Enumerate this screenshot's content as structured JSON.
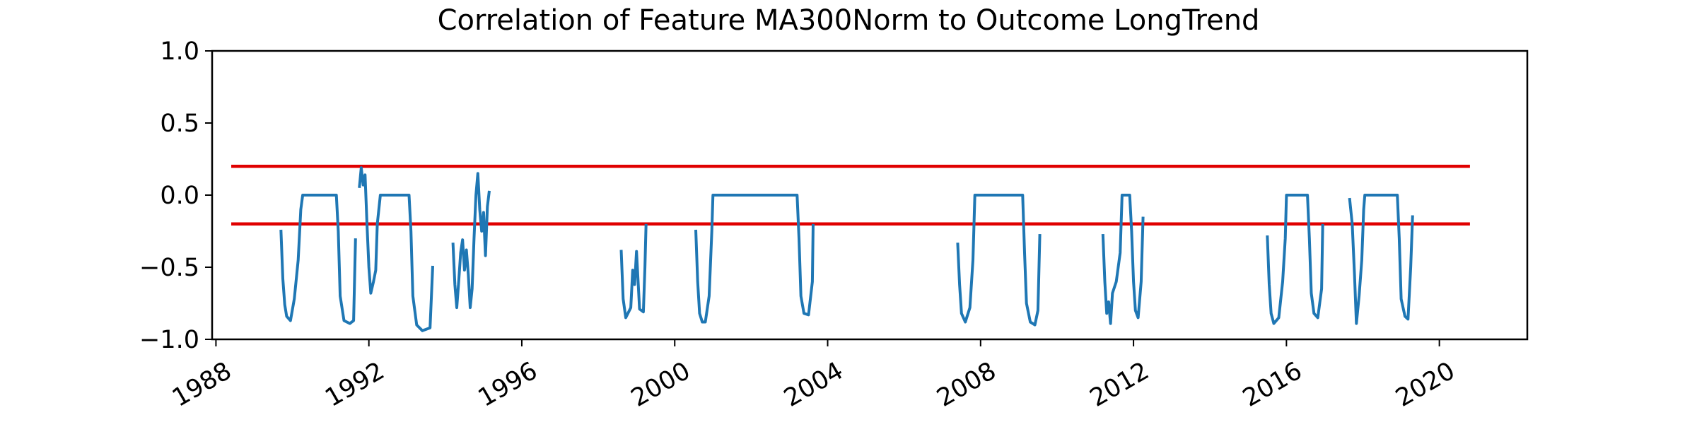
{
  "chart_data": {
    "type": "line",
    "title": "Correlation of Feature MA300Norm to Outcome LongTrend",
    "xlabel": "",
    "ylabel": "",
    "x_axis": "date (year)",
    "xlim": [
      1987.9,
      2022.3
    ],
    "ylim": [
      -1.0,
      1.0
    ],
    "xticks": [
      1988,
      1992,
      1996,
      2000,
      2004,
      2008,
      2012,
      2016,
      2020
    ],
    "xtick_labels": [
      "1988",
      "1992",
      "1996",
      "2000",
      "2004",
      "2008",
      "2012",
      "2016",
      "2020"
    ],
    "yticks": [
      1.0,
      0.5,
      0.0,
      -0.5,
      -1.0
    ],
    "ytick_labels": [
      "1.0",
      "0.5",
      "0.0",
      "−0.5",
      "−1.0"
    ],
    "grid": false,
    "legend": "none",
    "colors": {
      "correlation": "#1f77b4",
      "threshold": "#e00000"
    },
    "thresholds": [
      {
        "y": 0.2,
        "x": [
          1988.4,
          2020.8
        ]
      },
      {
        "y": -0.2,
        "x": [
          1988.4,
          2020.8
        ]
      }
    ],
    "series": [
      {
        "segments": [
          [
            [
              1989.7,
              -0.24
            ],
            [
              1989.75,
              -0.58
            ],
            [
              1989.8,
              -0.76
            ],
            [
              1989.85,
              -0.84
            ],
            [
              1989.95,
              -0.87
            ],
            [
              1990.05,
              -0.72
            ],
            [
              1990.15,
              -0.45
            ],
            [
              1990.22,
              -0.1
            ],
            [
              1990.27,
              0.0
            ],
            [
              1991.15,
              0.0
            ],
            [
              1991.2,
              -0.25
            ],
            [
              1991.25,
              -0.7
            ],
            [
              1991.35,
              -0.87
            ],
            [
              1991.5,
              -0.89
            ],
            [
              1991.6,
              -0.87
            ],
            [
              1991.65,
              -0.3
            ]
          ],
          [
            [
              1991.75,
              0.05
            ],
            [
              1991.8,
              0.19
            ],
            [
              1991.85,
              0.07
            ],
            [
              1991.9,
              0.14
            ],
            [
              1991.95,
              -0.2
            ],
            [
              1992.0,
              -0.5
            ],
            [
              1992.05,
              -0.68
            ],
            [
              1992.12,
              -0.6
            ],
            [
              1992.18,
              -0.52
            ],
            [
              1992.22,
              -0.2
            ],
            [
              1992.3,
              0.0
            ],
            [
              1993.05,
              0.0
            ],
            [
              1993.1,
              -0.25
            ],
            [
              1993.15,
              -0.7
            ],
            [
              1993.25,
              -0.9
            ],
            [
              1993.4,
              -0.94
            ],
            [
              1993.6,
              -0.92
            ],
            [
              1993.67,
              -0.49
            ]
          ],
          [
            [
              1994.2,
              -0.33
            ],
            [
              1994.25,
              -0.62
            ],
            [
              1994.3,
              -0.78
            ],
            [
              1994.35,
              -0.6
            ],
            [
              1994.4,
              -0.4
            ],
            [
              1994.45,
              -0.31
            ],
            [
              1994.5,
              -0.52
            ],
            [
              1994.55,
              -0.38
            ],
            [
              1994.6,
              -0.55
            ],
            [
              1994.65,
              -0.78
            ],
            [
              1994.7,
              -0.65
            ],
            [
              1994.75,
              -0.3
            ],
            [
              1994.8,
              0.0
            ],
            [
              1994.85,
              0.15
            ],
            [
              1994.9,
              -0.1
            ],
            [
              1994.95,
              -0.25
            ],
            [
              1995.0,
              -0.12
            ],
            [
              1995.05,
              -0.42
            ],
            [
              1995.1,
              -0.08
            ],
            [
              1995.15,
              0.03
            ]
          ],
          [
            [
              1998.6,
              -0.38
            ],
            [
              1998.65,
              -0.72
            ],
            [
              1998.72,
              -0.85
            ],
            [
              1998.85,
              -0.78
            ],
            [
              1998.9,
              -0.52
            ],
            [
              1998.95,
              -0.62
            ],
            [
              1999.0,
              -0.39
            ],
            [
              1999.08,
              -0.79
            ],
            [
              1999.18,
              -0.81
            ],
            [
              1999.22,
              -0.5
            ],
            [
              1999.25,
              -0.2
            ]
          ],
          [
            [
              2000.55,
              -0.24
            ],
            [
              2000.6,
              -0.6
            ],
            [
              2000.65,
              -0.82
            ],
            [
              2000.72,
              -0.88
            ],
            [
              2000.8,
              -0.88
            ],
            [
              2000.9,
              -0.7
            ],
            [
              2000.97,
              -0.25
            ],
            [
              2001.0,
              0.0
            ],
            [
              2003.2,
              0.0
            ],
            [
              2003.25,
              -0.3
            ],
            [
              2003.3,
              -0.7
            ],
            [
              2003.38,
              -0.82
            ],
            [
              2003.5,
              -0.83
            ],
            [
              2003.6,
              -0.6
            ],
            [
              2003.62,
              -0.2
            ]
          ],
          [
            [
              2007.4,
              -0.33
            ],
            [
              2007.45,
              -0.62
            ],
            [
              2007.5,
              -0.82
            ],
            [
              2007.6,
              -0.88
            ],
            [
              2007.72,
              -0.78
            ],
            [
              2007.8,
              -0.45
            ],
            [
              2007.85,
              0.0
            ],
            [
              2009.1,
              0.0
            ],
            [
              2009.15,
              -0.4
            ],
            [
              2009.2,
              -0.75
            ],
            [
              2009.3,
              -0.88
            ],
            [
              2009.42,
              -0.9
            ],
            [
              2009.5,
              -0.8
            ],
            [
              2009.55,
              -0.27
            ]
          ],
          [
            [
              2011.2,
              -0.27
            ],
            [
              2011.25,
              -0.6
            ],
            [
              2011.3,
              -0.82
            ],
            [
              2011.35,
              -0.74
            ],
            [
              2011.4,
              -0.89
            ],
            [
              2011.45,
              -0.68
            ],
            [
              2011.55,
              -0.6
            ],
            [
              2011.65,
              -0.4
            ],
            [
              2011.7,
              0.0
            ],
            [
              2011.9,
              0.0
            ],
            [
              2011.95,
              -0.25
            ],
            [
              2012.0,
              -0.6
            ],
            [
              2012.05,
              -0.8
            ],
            [
              2012.12,
              -0.85
            ],
            [
              2012.2,
              -0.6
            ],
            [
              2012.25,
              -0.15
            ]
          ],
          [
            [
              2015.5,
              -0.28
            ],
            [
              2015.55,
              -0.62
            ],
            [
              2015.6,
              -0.82
            ],
            [
              2015.67,
              -0.89
            ],
            [
              2015.8,
              -0.85
            ],
            [
              2015.9,
              -0.6
            ],
            [
              2015.97,
              -0.3
            ],
            [
              2016.0,
              0.0
            ],
            [
              2016.55,
              0.0
            ],
            [
              2016.6,
              -0.3
            ],
            [
              2016.65,
              -0.68
            ],
            [
              2016.72,
              -0.82
            ],
            [
              2016.82,
              -0.85
            ],
            [
              2016.92,
              -0.65
            ],
            [
              2016.95,
              -0.2
            ]
          ],
          [
            [
              2017.65,
              -0.02
            ],
            [
              2017.72,
              -0.2
            ],
            [
              2017.78,
              -0.55
            ],
            [
              2017.83,
              -0.89
            ],
            [
              2017.9,
              -0.7
            ],
            [
              2017.97,
              -0.45
            ],
            [
              2018.02,
              -0.1
            ],
            [
              2018.05,
              0.0
            ],
            [
              2018.9,
              0.0
            ],
            [
              2018.95,
              -0.3
            ],
            [
              2019.0,
              -0.72
            ],
            [
              2019.1,
              -0.84
            ],
            [
              2019.18,
              -0.86
            ],
            [
              2019.25,
              -0.5
            ],
            [
              2019.3,
              -0.14
            ]
          ]
        ]
      }
    ]
  }
}
